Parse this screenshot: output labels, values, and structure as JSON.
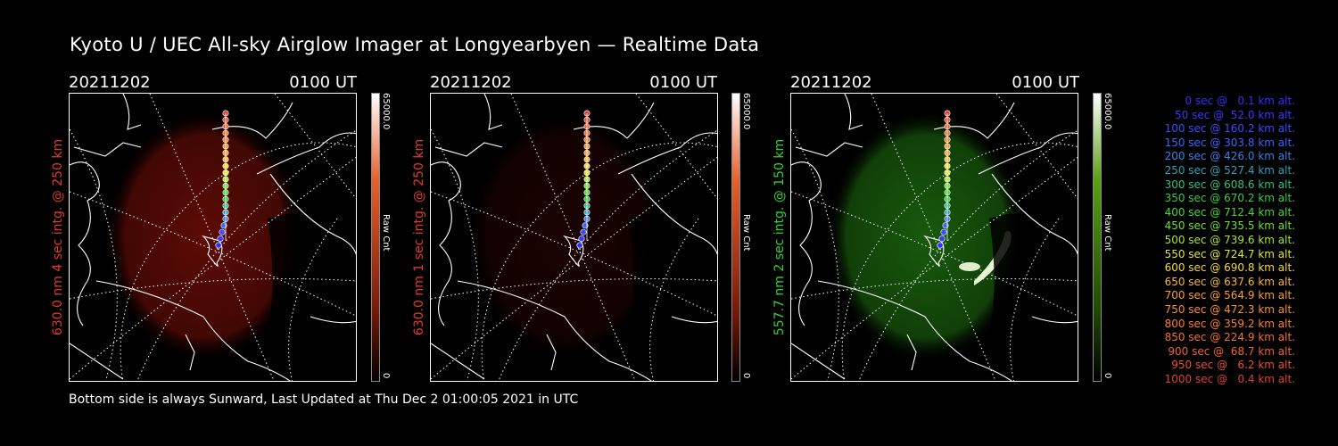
{
  "title": "Kyoto U / UEC All-sky Airglow Imager at Longyearbyen — Realtime Data",
  "footer": "Bottom side is always Sunward, Last Updated at Thu Dec  2 01:00:05 2021 in UTC",
  "panels": [
    {
      "date": "20211202",
      "time": "0100 UT",
      "side_label": "630.0 nm  4 sec intg. @ 250 km",
      "side_color": "#e23a2a",
      "cbar_max": "65000.0",
      "cbar_min": "0",
      "cbar_unit": "Raw Cnt",
      "tint": "red",
      "brightness": 0.55
    },
    {
      "date": "20211202",
      "time": "0100 UT",
      "side_label": "630.0 nm  1 sec intg. @ 250 km",
      "side_color": "#e23a2a",
      "cbar_max": "65000.0",
      "cbar_min": "0",
      "cbar_unit": "Raw Cnt",
      "tint": "red",
      "brightness": 0.15
    },
    {
      "date": "20211202",
      "time": "0100 UT",
      "side_label": "557.7 nm  2 sec intg. @ 150 km",
      "side_color": "#32d232",
      "cbar_max": "65000.0",
      "cbar_min": "0",
      "cbar_unit": "Raw Cnt",
      "tint": "green",
      "brightness": 0.6
    }
  ],
  "legend": [
    {
      "text": "   0 sec @   0.1 km alt.",
      "color": "#3030ff"
    },
    {
      "text": "  50 sec @  52.0 km alt.",
      "color": "#3838ff"
    },
    {
      "text": " 100 sec @ 160.2 km alt.",
      "color": "#3a4cff"
    },
    {
      "text": " 150 sec @ 303.8 km alt.",
      "color": "#3c64ff"
    },
    {
      "text": " 200 sec @ 426.0 km alt.",
      "color": "#3c80e8"
    },
    {
      "text": " 250 sec @ 527.4 km alt.",
      "color": "#30a0b8"
    },
    {
      "text": " 300 sec @ 608.6 km alt.",
      "color": "#30c080"
    },
    {
      "text": " 350 sec @ 670.2 km alt.",
      "color": "#38d040"
    },
    {
      "text": " 400 sec @ 712.4 km alt.",
      "color": "#48d830"
    },
    {
      "text": " 450 sec @ 735.5 km alt.",
      "color": "#70e030"
    },
    {
      "text": " 500 sec @ 739.6 km alt.",
      "color": "#a8e830"
    },
    {
      "text": " 550 sec @ 724.7 km alt.",
      "color": "#e0e830"
    },
    {
      "text": " 600 sec @ 690.8 km alt.",
      "color": "#f8d830"
    },
    {
      "text": " 650 sec @ 637.6 km alt.",
      "color": "#f8b830"
    },
    {
      "text": " 700 sec @ 564.9 km alt.",
      "color": "#f8a030"
    },
    {
      "text": " 750 sec @ 472.3 km alt.",
      "color": "#f89030"
    },
    {
      "text": " 800 sec @ 359.2 km alt.",
      "color": "#f88030"
    },
    {
      "text": " 850 sec @ 224.9 km alt.",
      "color": "#f87030"
    },
    {
      "text": " 900 sec @  68.7 km alt.",
      "color": "#f06030"
    },
    {
      "text": " 950 sec @   6.2 km alt.",
      "color": "#e85030"
    },
    {
      "text": "1000 sec @   0.4 km alt.",
      "color": "#e04030"
    }
  ]
}
